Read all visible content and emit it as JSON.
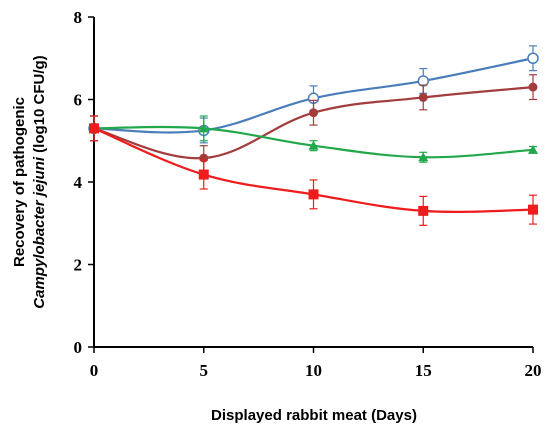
{
  "chart_data": {
    "type": "line",
    "xlabel": "Displayed rabbit meat (Days)",
    "ylabel_line1": "Recovery of pathogenic",
    "ylabel_line2_italic": "Campylobacter jejuni",
    "ylabel_line2_rest": " (log10 CFU/g)",
    "x": [
      0,
      5,
      10,
      15,
      20
    ],
    "xlim": [
      0,
      20
    ],
    "ylim": [
      0,
      8
    ],
    "x_ticks": [
      "0",
      "5",
      "10",
      "15",
      "20"
    ],
    "y_ticks": [
      "0",
      "2",
      "4",
      "6",
      "8"
    ],
    "grid": false,
    "legend": "none",
    "series": [
      {
        "color": "#4a7ebb",
        "marker": "open-circle",
        "values": [
          5.3,
          5.25,
          6.03,
          6.45,
          7.0
        ],
        "errors": [
          0.3,
          0.3,
          0.3,
          0.3,
          0.3
        ]
      },
      {
        "color": "#a33c3c",
        "marker": "filled-circle",
        "values": [
          5.3,
          4.58,
          5.68,
          6.05,
          6.3
        ],
        "errors": [
          0.3,
          0.3,
          0.3,
          0.3,
          0.3
        ]
      },
      {
        "color": "#22a84a",
        "marker": "triangle",
        "values": [
          5.3,
          5.3,
          4.88,
          4.6,
          4.78
        ],
        "errors": [
          0.3,
          0.3,
          0.12,
          0.12,
          0.08
        ]
      },
      {
        "color": "#ee1c1c",
        "marker": "square",
        "values": [
          5.3,
          4.18,
          3.7,
          3.3,
          3.33
        ],
        "errors": [
          0.3,
          0.35,
          0.35,
          0.35,
          0.35
        ]
      }
    ]
  }
}
